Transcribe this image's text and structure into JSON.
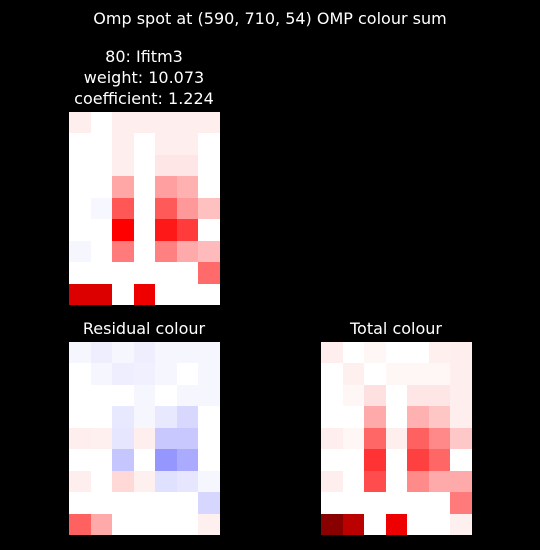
{
  "figure": {
    "title": "Omp spot at (590, 710, 54) OMP colour sum"
  },
  "panels": [
    {
      "id": "gene",
      "title_lines": [
        "80: Ifitm3",
        "weight: 10.073",
        "coefficient: 1.224"
      ],
      "rows": [
        [
          "#ffeeee",
          "#ffffff",
          "#ffeeee",
          "#ffeeee",
          "#ffeeee",
          "#ffeeee",
          "#ffeeee"
        ],
        [
          "#ffffff",
          "#ffffff",
          "#ffeeee",
          "#ffffff",
          "#ffeeee",
          "#ffeeee",
          "#ffffff"
        ],
        [
          "#ffffff",
          "#ffffff",
          "#ffeeee",
          "#ffffff",
          "#ffe6e6",
          "#ffe6e6",
          "#ffffff"
        ],
        [
          "#ffffff",
          "#ffffff",
          "#ffa6a6",
          "#ffffff",
          "#ff9f9f",
          "#ffb0b0",
          "#ffffff"
        ],
        [
          "#ffffff",
          "#f7f7ff",
          "#ff5656",
          "#ffffff",
          "#ff5a5a",
          "#ff9898",
          "#ffc0c0"
        ],
        [
          "#ffffff",
          "#ffffff",
          "#ff0000",
          "#ffffff",
          "#ff1818",
          "#ff3b3b",
          "#ffffff"
        ],
        [
          "#f6f6ff",
          "#ffffff",
          "#ff7a7a",
          "#ffffff",
          "#ff8080",
          "#ffaaaa",
          "#ffbbbb"
        ],
        [
          "#ffffff",
          "#ffffff",
          "#ffffff",
          "#ffffff",
          "#ffffff",
          "#ffffff",
          "#ff6a6a"
        ],
        [
          "#dd0000",
          "#dd0000",
          "#ffffff",
          "#ee0000",
          "#ffffff",
          "#ffffff",
          "#ffffff"
        ]
      ]
    },
    {
      "id": "residual",
      "title_lines": [
        "Residual colour"
      ],
      "rows": [
        [
          "#f6f6ff",
          "#eeeeff",
          "#f6f6ff",
          "#eeeeff",
          "#f6f6ff",
          "#f6f6ff",
          "#f6f6ff"
        ],
        [
          "#ffffff",
          "#f6f6ff",
          "#eeeeff",
          "#f0f0ff",
          "#f6f6ff",
          "#ffffff",
          "#f6f6ff"
        ],
        [
          "#ffffff",
          "#ffffff",
          "#ffffff",
          "#f6f6ff",
          "#ffffff",
          "#f6f6ff",
          "#f6f6ff"
        ],
        [
          "#ffffff",
          "#ffffff",
          "#e8e8ff",
          "#f6f6ff",
          "#e8e8ff",
          "#d8d8ff",
          "#ffffff"
        ],
        [
          "#ffeeee",
          "#fff0f0",
          "#e6e6ff",
          "#ffeeee",
          "#c8c8ff",
          "#c8c8ff",
          "#ffffff"
        ],
        [
          "#ffffff",
          "#ffffff",
          "#c6c6ff",
          "#ffffff",
          "#9696ff",
          "#aaaaff",
          "#ffffff"
        ],
        [
          "#ffeeee",
          "#ffffff",
          "#ffd8d8",
          "#fff0f0",
          "#e0e0ff",
          "#e6e6ff",
          "#f6f6ff"
        ],
        [
          "#ffffff",
          "#ffffff",
          "#ffffff",
          "#ffffff",
          "#ffffff",
          "#ffffff",
          "#d6d6ff"
        ],
        [
          "#ff6060",
          "#ffaaaa",
          "#ffffff",
          "#ffffff",
          "#ffffff",
          "#ffffff",
          "#fff0f0"
        ]
      ]
    },
    {
      "id": "total",
      "title_lines": [
        "Total colour"
      ],
      "rows": [
        [
          "#ffeeee",
          "#ffffff",
          "#fff6f6",
          "#ffffff",
          "#ffffff",
          "#fff0f0",
          "#ffeeee"
        ],
        [
          "#ffffff",
          "#fff0f0",
          "#ffffff",
          "#fff6f6",
          "#fff6f6",
          "#fff6f6",
          "#ffeeee"
        ],
        [
          "#ffffff",
          "#fff6f6",
          "#ffe0e0",
          "#ffffff",
          "#ffe6e6",
          "#ffe6e6",
          "#ffeeee"
        ],
        [
          "#ffffff",
          "#ffffff",
          "#ffaaaa",
          "#ffffff",
          "#ffb0b0",
          "#ffc6c6",
          "#ffeeee"
        ],
        [
          "#ffeeee",
          "#fff6f6",
          "#ff6666",
          "#ffeeee",
          "#ff6060",
          "#ff8888",
          "#ffc8c8"
        ],
        [
          "#ffffff",
          "#ffffff",
          "#ff3333",
          "#ffffff",
          "#ff4040",
          "#ff6666",
          "#ffffff"
        ],
        [
          "#ffeeee",
          "#ffffff",
          "#ff4c4c",
          "#ffffff",
          "#ff8a8a",
          "#ffaaaa",
          "#ffaaaa"
        ],
        [
          "#ffffff",
          "#ffffff",
          "#ffffff",
          "#ffffff",
          "#ffffff",
          "#ffffff",
          "#ff7a7a"
        ],
        [
          "#880000",
          "#bb0000",
          "#ffffff",
          "#ee0000",
          "#ffffff",
          "#ffffff",
          "#fff0f0"
        ]
      ]
    }
  ]
}
